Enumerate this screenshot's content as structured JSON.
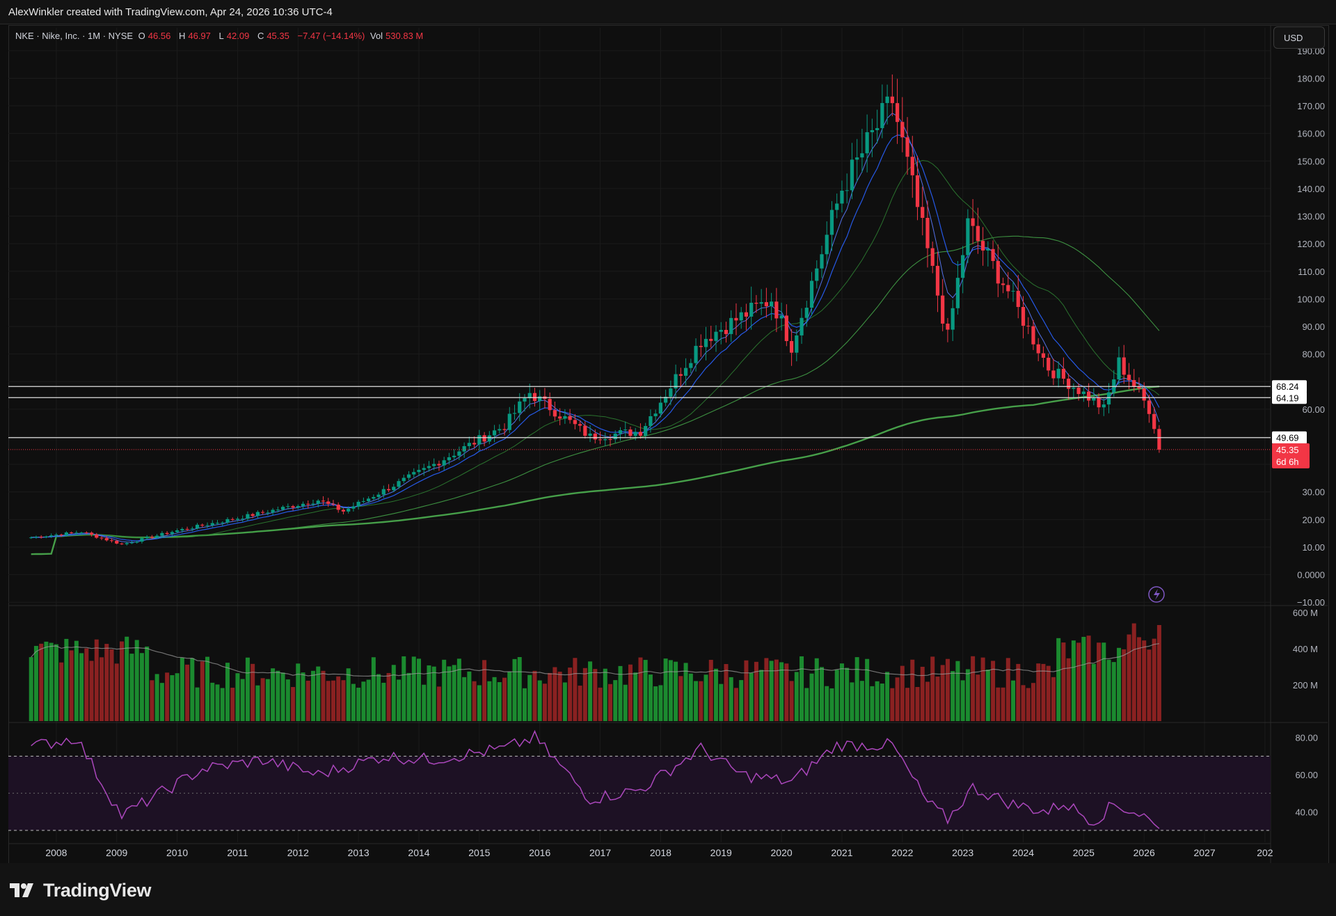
{
  "header": {
    "credit": "AlexWinkler created with TradingView.com, Apr 24, 2026 10:36 UTC-4"
  },
  "legend": {
    "symbol": "NKE · Nike, Inc. · 1M · NYSE",
    "open_label": "O",
    "open": "46.56",
    "high_label": "H",
    "high": "46.97",
    "low_label": "L",
    "low": "42.09",
    "close_label": "C",
    "close": "45.35",
    "change": "−7.47 (−14.14%)",
    "vol_label": "Vol",
    "vol": "530.83 M"
  },
  "currency_button": "USD",
  "brand": "TradingView",
  "colors": {
    "up": "#089981",
    "down": "#f23645",
    "ema_fast": "#2962ff",
    "ma_mid": "#4caf50",
    "rsi": "#9c27b0",
    "background": "#0f0f0f"
  },
  "chart_data": {
    "type": "candlestick",
    "symbol": "NKE",
    "timeframe": "1M",
    "x_axis_labels": [
      "2008",
      "2009",
      "2010",
      "2011",
      "2012",
      "2013",
      "2014",
      "2015",
      "2016",
      "2017",
      "2018",
      "2019",
      "2020",
      "2021",
      "2022",
      "2023",
      "2024",
      "2025",
      "2026",
      "2027",
      "202"
    ],
    "price_axis": {
      "ticks": [
        "190.00",
        "180.00",
        "170.00",
        "160.00",
        "150.00",
        "140.00",
        "130.00",
        "120.00",
        "110.00",
        "100.00",
        "90.00",
        "80.00",
        "60.00",
        "30.00",
        "20.00",
        "10.00",
        "0.0000",
        "−10.00"
      ],
      "range": [
        -10,
        190
      ]
    },
    "horizontal_levels": [
      {
        "value": 68.24,
        "label": "68.24"
      },
      {
        "value": 64.19,
        "label": "64.19"
      },
      {
        "value": 49.69,
        "label": "49.69"
      }
    ],
    "last_price": {
      "value": 45.35,
      "label": "45.35",
      "countdown": "6d 6h"
    },
    "monthly_close_anchors": [
      {
        "date": "2007-08",
        "close": 13.5
      },
      {
        "date": "2008-06",
        "close": 15.5
      },
      {
        "date": "2009-02",
        "close": 11.0
      },
      {
        "date": "2010-01",
        "close": 16.0
      },
      {
        "date": "2011-01",
        "close": 20.5
      },
      {
        "date": "2012-05",
        "close": 27.0
      },
      {
        "date": "2012-10",
        "close": 23.0
      },
      {
        "date": "2014-02",
        "close": 38.0
      },
      {
        "date": "2015-06",
        "close": 54.0
      },
      {
        "date": "2015-11",
        "close": 66.0
      },
      {
        "date": "2016-11",
        "close": 50.0
      },
      {
        "date": "2017-09",
        "close": 52.0
      },
      {
        "date": "2018-09",
        "close": 85.0
      },
      {
        "date": "2019-11",
        "close": 100.0
      },
      {
        "date": "2020-03",
        "close": 83.0
      },
      {
        "date": "2021-01",
        "close": 140.0
      },
      {
        "date": "2021-11",
        "close": 172.0
      },
      {
        "date": "2022-10",
        "close": 86.0
      },
      {
        "date": "2023-02",
        "close": 127.0
      },
      {
        "date": "2023-10",
        "close": 103.0
      },
      {
        "date": "2024-06",
        "close": 75.0
      },
      {
        "date": "2025-03",
        "close": 63.0
      },
      {
        "date": "2025-05",
        "close": 60.0
      },
      {
        "date": "2025-08",
        "close": 77.0
      },
      {
        "date": "2026-02",
        "close": 60.0
      },
      {
        "date": "2026-03",
        "close": 52.82
      },
      {
        "date": "2026-04",
        "close": 45.35
      }
    ],
    "volume_pane": {
      "ticks": [
        "600 M",
        "400 M",
        "200 M"
      ],
      "range": [
        0,
        600
      ]
    },
    "rsi_pane": {
      "ticks": [
        "80.00",
        "60.00",
        "40.00"
      ],
      "range": [
        30,
        90
      ],
      "bands": [
        70,
        30
      ],
      "anchors": [
        {
          "date": "2007-08",
          "value": 75
        },
        {
          "date": "2008-05",
          "value": 80
        },
        {
          "date": "2008-10",
          "value": 56
        },
        {
          "date": "2009-02",
          "value": 38
        },
        {
          "date": "2010-06",
          "value": 63
        },
        {
          "date": "2011-06",
          "value": 68
        },
        {
          "date": "2012-05",
          "value": 60
        },
        {
          "date": "2013-06",
          "value": 70
        },
        {
          "date": "2014-03",
          "value": 68
        },
        {
          "date": "2015-06",
          "value": 74
        },
        {
          "date": "2015-12",
          "value": 80
        },
        {
          "date": "2016-11",
          "value": 47
        },
        {
          "date": "2017-09",
          "value": 52
        },
        {
          "date": "2018-09",
          "value": 74
        },
        {
          "date": "2019-05",
          "value": 60
        },
        {
          "date": "2020-03",
          "value": 56
        },
        {
          "date": "2020-12",
          "value": 76
        },
        {
          "date": "2021-11",
          "value": 76
        },
        {
          "date": "2022-06",
          "value": 45
        },
        {
          "date": "2022-10",
          "value": 36
        },
        {
          "date": "2023-03",
          "value": 53
        },
        {
          "date": "2023-11",
          "value": 44
        },
        {
          "date": "2024-06",
          "value": 40
        },
        {
          "date": "2024-09",
          "value": 45
        },
        {
          "date": "2025-03",
          "value": 35
        },
        {
          "date": "2025-07",
          "value": 44
        },
        {
          "date": "2026-01",
          "value": 38
        },
        {
          "date": "2026-04",
          "value": 31
        }
      ]
    }
  }
}
